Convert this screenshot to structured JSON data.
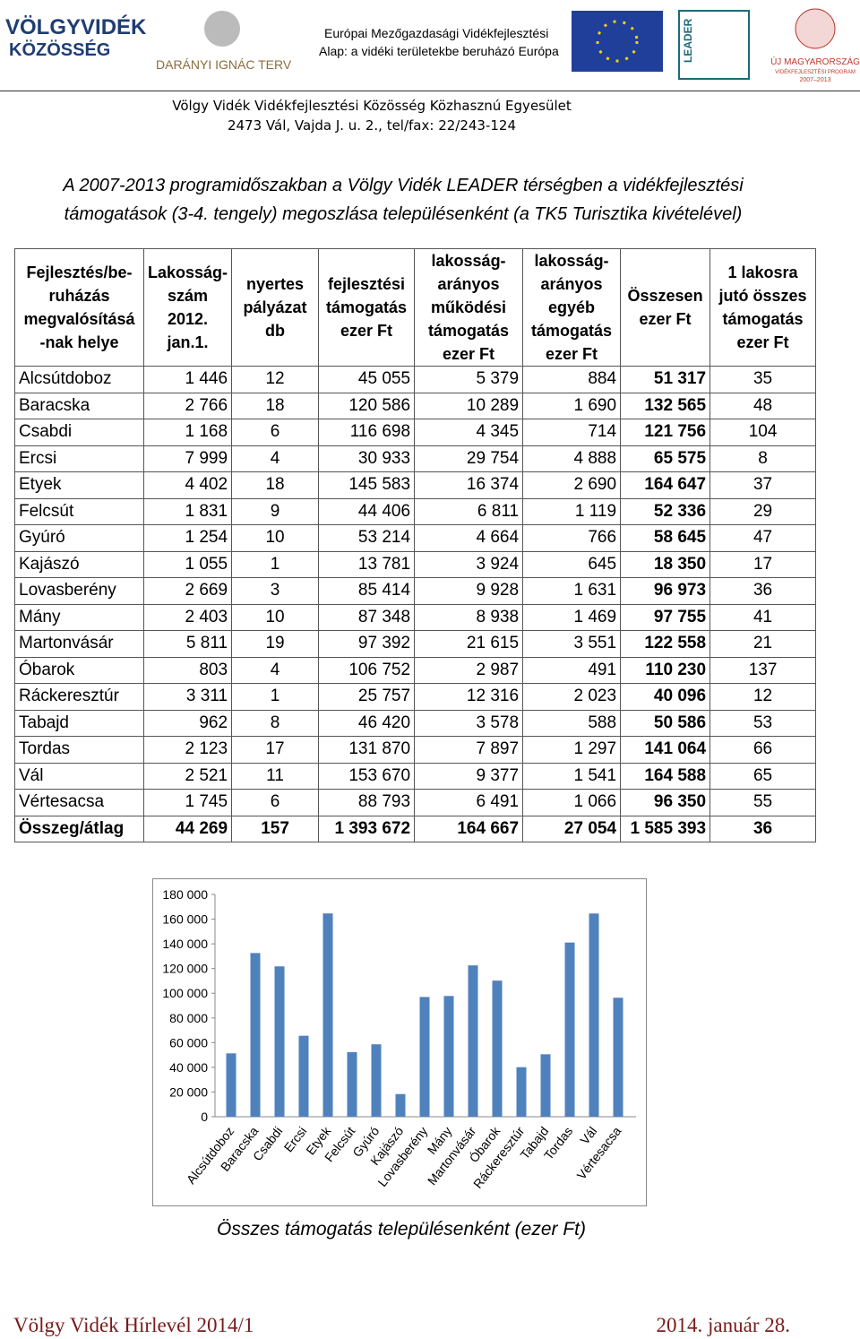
{
  "header": {
    "logo1": [
      "VÖLGYVIDÉK",
      "KÖZÖSSÉG"
    ],
    "logo2": "DARÁNYI IGNÁC TERV",
    "eu_text": [
      "Európai Mezőgazdasági Vidékfejlesztési",
      "Alap: a vidéki területekbe beruházó Európa"
    ],
    "logo3": "LEADER",
    "logo4": [
      "ÚJ MAGYARORSZÁG",
      "VIDÉKFEJLESZTÉSI PROGRAM",
      "2007–2013"
    ],
    "address": [
      "Völgy Vidék Vidékfejlesztési Közösség Közhasznú Egyesület",
      "2473 Vál, Vajda J. u. 2., tel/fax: 22/243-124"
    ]
  },
  "title": [
    "A 2007-2013 programidőszakban a Völgy Vidék LEADER térségben a vidékfejlesztési",
    "támogatások (3-4. tengely) megoszlása településenként (a TK5 Turisztika kivételével)"
  ],
  "table": {
    "columns": [
      "Fejlesztés/be-\nruházás\nmegvalósításá\n-nak helye",
      "Lakosság-\nszám\n2012.\njan.1.",
      "nyertes\npályázat\ndb",
      "fejlesztési\ntámogatás\nezer Ft",
      "lakosság-\narányos\nműködési\ntámogatás\nezer Ft",
      "lakosság-\narányos\negyéb\ntámogatás\nezer Ft",
      "Összesen\nezer Ft",
      "1 lakosra\njutó összes\ntámogatás\nezer Ft"
    ],
    "rows": [
      [
        "Alcsútdoboz",
        "1 446",
        "12",
        "45 055",
        "5 379",
        "884",
        "51 317",
        "35"
      ],
      [
        "Baracska",
        "2 766",
        "18",
        "120 586",
        "10 289",
        "1 690",
        "132 565",
        "48"
      ],
      [
        "Csabdi",
        "1 168",
        "6",
        "116 698",
        "4 345",
        "714",
        "121 756",
        "104"
      ],
      [
        "Ercsi",
        "7 999",
        "4",
        "30 933",
        "29 754",
        "4 888",
        "65 575",
        "8"
      ],
      [
        "Etyek",
        "4 402",
        "18",
        "145 583",
        "16 374",
        "2 690",
        "164 647",
        "37"
      ],
      [
        "Felcsút",
        "1 831",
        "9",
        "44 406",
        "6 811",
        "1 119",
        "52 336",
        "29"
      ],
      [
        "Gyúró",
        "1 254",
        "10",
        "53 214",
        "4 664",
        "766",
        "58 645",
        "47"
      ],
      [
        "Kajászó",
        "1 055",
        "1",
        "13 781",
        "3 924",
        "645",
        "18 350",
        "17"
      ],
      [
        "Lovasberény",
        "2 669",
        "3",
        "85 414",
        "9 928",
        "1 631",
        "96 973",
        "36"
      ],
      [
        "Mány",
        "2 403",
        "10",
        "87 348",
        "8 938",
        "1 469",
        "97 755",
        "41"
      ],
      [
        "Martonvásár",
        "5 811",
        "19",
        "97 392",
        "21 615",
        "3 551",
        "122 558",
        "21"
      ],
      [
        "Óbarok",
        "803",
        "4",
        "106 752",
        "2 987",
        "491",
        "110 230",
        "137"
      ],
      [
        "Ráckeresztúr",
        "3 311",
        "1",
        "25 757",
        "12 316",
        "2 023",
        "40 096",
        "12"
      ],
      [
        "Tabajd",
        "962",
        "8",
        "46 420",
        "3 578",
        "588",
        "50 586",
        "53"
      ],
      [
        "Tordas",
        "2 123",
        "17",
        "131 870",
        "7 897",
        "1 297",
        "141 064",
        "66"
      ],
      [
        "Vál",
        "2 521",
        "11",
        "153 670",
        "9 377",
        "1 541",
        "164 588",
        "65"
      ],
      [
        "Vértesacsa",
        "1 745",
        "6",
        "88 793",
        "6 491",
        "1 066",
        "96 350",
        "55"
      ]
    ],
    "total": [
      "Összeg/átlag",
      "44 269",
      "157",
      "1 393 672",
      "164 667",
      "27 054",
      "1 585 393",
      "36"
    ]
  },
  "chart_data": {
    "type": "bar",
    "categories": [
      "Alcsútdoboz",
      "Baracska",
      "Csabdi",
      "Ercsi",
      "Etyek",
      "Felcsút",
      "Gyúró",
      "Kajászó",
      "Lovasberény",
      "Mány",
      "Martonvásár",
      "Óbarok",
      "Ráckeresztúr",
      "Tabajd",
      "Tordas",
      "Vál",
      "Vértesacsa"
    ],
    "values": [
      51317,
      132565,
      121756,
      65575,
      164647,
      52336,
      58645,
      18350,
      96973,
      97755,
      122558,
      110230,
      40096,
      50586,
      141064,
      164588,
      96350
    ],
    "color": "#4f81bd",
    "ylim": [
      0,
      180000
    ],
    "yticks": [
      0,
      {
        "value": 20000,
        "label": "20 000"
      },
      {
        "value": 40000,
        "label": "40 000"
      },
      {
        "value": 60000,
        "label": "60 000"
      },
      {
        "value": 80000,
        "label": "80 000"
      },
      {
        "value": 100000,
        "label": "100 000"
      },
      {
        "value": 120000,
        "label": "120 000"
      },
      {
        "value": 140000,
        "label": "140 000"
      },
      {
        "value": 160000,
        "label": "160 000"
      },
      {
        "value": 180000,
        "label": "180 000"
      }
    ],
    "caption": "Összes támogatás településenként (ezer Ft)"
  },
  "footer": {
    "left": "Völgy Vidék Hírlevél 2014/1",
    "right": "2014. január 28."
  }
}
